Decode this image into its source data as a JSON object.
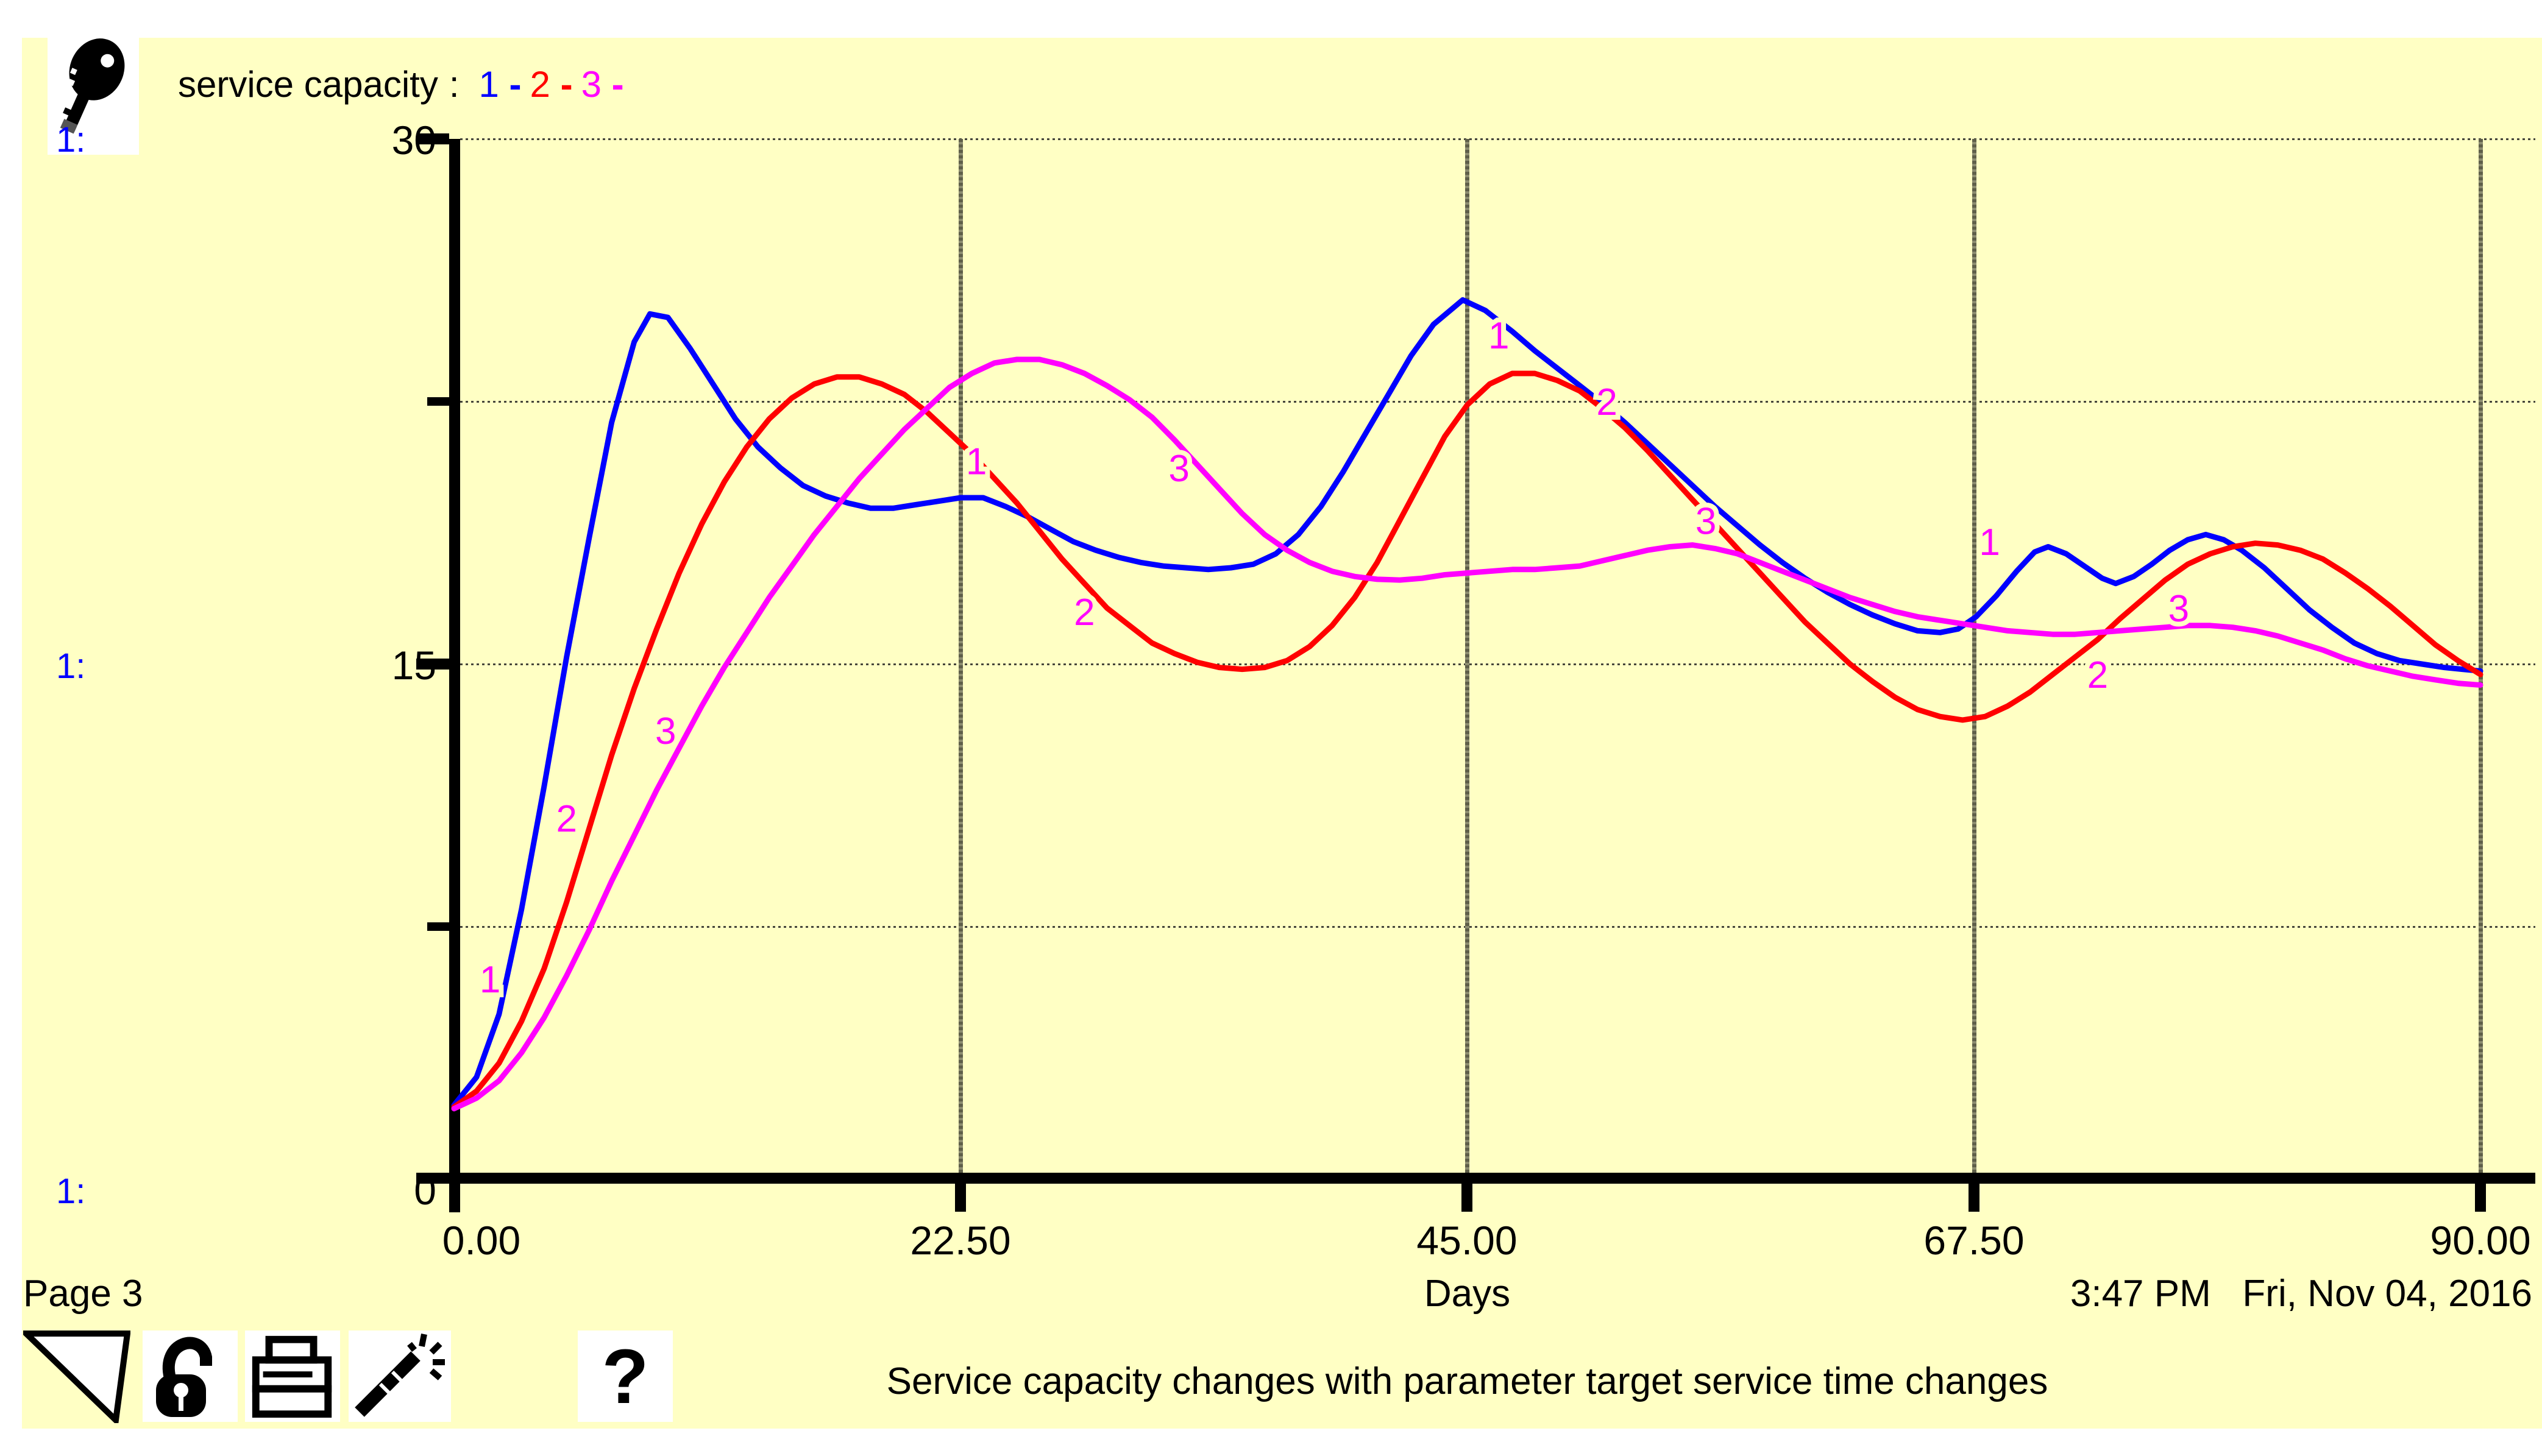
{
  "app": {
    "bg_color": "#FFFFC4",
    "accent_blue": "#0000FF",
    "accent_red": "#FF0000",
    "accent_magenta": "#FF00FF"
  },
  "legend": {
    "title": "service capacity",
    "separator": ":",
    "dash": "-",
    "runs": [
      {
        "label": "1",
        "color": "#0000FF"
      },
      {
        "label": "2",
        "color": "#FF0000"
      },
      {
        "label": "3",
        "color": "#FF00FF"
      }
    ]
  },
  "scale_markers": {
    "label": "1:",
    "color": "#0000FF"
  },
  "y_axis": {
    "ticks": [
      "30",
      "15",
      "0"
    ]
  },
  "x_axis": {
    "ticks": [
      "0.00",
      "22.50",
      "45.00",
      "67.50",
      "90.00"
    ],
    "title": "Days"
  },
  "footer": {
    "page_label": "Page 3",
    "timestamp": "3:47 PM   Fri, Nov 04, 2016",
    "caption": "Service capacity changes with parameter target service time changes"
  },
  "toolbar": {
    "help_glyph": "?",
    "icons": [
      "corner-triangle-icon",
      "open-padlock-icon",
      "printer-icon",
      "magic-wand-icon",
      "help-question-icon"
    ]
  },
  "chart_data": {
    "type": "line",
    "title": "service capacity",
    "xlabel": "Days",
    "ylabel": "service capacity",
    "xlim": [
      0,
      90
    ],
    "ylim": [
      0,
      30
    ],
    "x_ticks": [
      0,
      22.5,
      45,
      67.5,
      90
    ],
    "y_ticks": [
      0,
      15,
      30
    ],
    "x_gridlines": [
      22.5,
      45,
      67.5,
      90
    ],
    "y_gridlines": [
      7.5,
      15,
      22.5,
      30
    ],
    "grid": "dotted horizontal lines, dark vertical lines",
    "legend_position": "top-left",
    "curve_label_color": "#FF00FF",
    "series": [
      {
        "name": "1",
        "color": "#0000FF",
        "points": [
          [
            0,
            2.4
          ],
          [
            1,
            3.2
          ],
          [
            2,
            5
          ],
          [
            3,
            8
          ],
          [
            4,
            11.5
          ],
          [
            5,
            15.2
          ],
          [
            6,
            18.6
          ],
          [
            7,
            21.9
          ],
          [
            8,
            24.2
          ],
          [
            8.7,
            25
          ],
          [
            9.5,
            24.9
          ],
          [
            10.5,
            24
          ],
          [
            11.5,
            23
          ],
          [
            12.5,
            22
          ],
          [
            13.5,
            21.2
          ],
          [
            14.5,
            20.6
          ],
          [
            15.5,
            20.1
          ],
          [
            16.5,
            19.8
          ],
          [
            17.5,
            19.6
          ],
          [
            18.5,
            19.45
          ],
          [
            19.5,
            19.45
          ],
          [
            20.5,
            19.55
          ],
          [
            21.5,
            19.65
          ],
          [
            22.5,
            19.75
          ],
          [
            23.5,
            19.75
          ],
          [
            24.5,
            19.5
          ],
          [
            25.5,
            19.2
          ],
          [
            26.5,
            18.85
          ],
          [
            27.5,
            18.5
          ],
          [
            28.5,
            18.25
          ],
          [
            29.5,
            18.05
          ],
          [
            30.5,
            17.9
          ],
          [
            31.5,
            17.8
          ],
          [
            32.5,
            17.75
          ],
          [
            33.5,
            17.7
          ],
          [
            34.5,
            17.75
          ],
          [
            35.5,
            17.85
          ],
          [
            36.5,
            18.15
          ],
          [
            37.5,
            18.7
          ],
          [
            38.5,
            19.5
          ],
          [
            39.5,
            20.5
          ],
          [
            40.5,
            21.6
          ],
          [
            41.5,
            22.7
          ],
          [
            42.5,
            23.8
          ],
          [
            43.5,
            24.7
          ],
          [
            44.8,
            25.4
          ],
          [
            45.8,
            25.1
          ],
          [
            47,
            24.5
          ],
          [
            48,
            23.95
          ],
          [
            49,
            23.45
          ],
          [
            50,
            22.95
          ],
          [
            51,
            22.45
          ],
          [
            52,
            21.9
          ],
          [
            53,
            21.3
          ],
          [
            54,
            20.7
          ],
          [
            55,
            20.1
          ],
          [
            56,
            19.5
          ],
          [
            57,
            18.95
          ],
          [
            58,
            18.4
          ],
          [
            59,
            17.9
          ],
          [
            60,
            17.45
          ],
          [
            61,
            17.05
          ],
          [
            62,
            16.7
          ],
          [
            63,
            16.4
          ],
          [
            64,
            16.15
          ],
          [
            65,
            15.95
          ],
          [
            66,
            15.9
          ],
          [
            66.8,
            16
          ],
          [
            67.6,
            16.35
          ],
          [
            68.5,
            16.95
          ],
          [
            69.4,
            17.65
          ],
          [
            70.2,
            18.2
          ],
          [
            70.8,
            18.35
          ],
          [
            71.6,
            18.15
          ],
          [
            72.4,
            17.8
          ],
          [
            73.2,
            17.45
          ],
          [
            73.8,
            17.3
          ],
          [
            74.6,
            17.5
          ],
          [
            75.4,
            17.85
          ],
          [
            76.2,
            18.25
          ],
          [
            77,
            18.55
          ],
          [
            77.8,
            18.7
          ],
          [
            78.6,
            18.55
          ],
          [
            79.4,
            18.25
          ],
          [
            80.4,
            17.75
          ],
          [
            81.4,
            17.15
          ],
          [
            82.4,
            16.55
          ],
          [
            83.4,
            16.05
          ],
          [
            84.4,
            15.6
          ],
          [
            85.4,
            15.3
          ],
          [
            86.4,
            15.1
          ],
          [
            87.4,
            15
          ],
          [
            88.4,
            14.9
          ],
          [
            89.2,
            14.85
          ],
          [
            90,
            14.8
          ]
        ]
      },
      {
        "name": "2",
        "color": "#FF0000",
        "points": [
          [
            0,
            2.35
          ],
          [
            1,
            2.8
          ],
          [
            2,
            3.6
          ],
          [
            3,
            4.8
          ],
          [
            4,
            6.3
          ],
          [
            5,
            8.2
          ],
          [
            6,
            10.3
          ],
          [
            7,
            12.4
          ],
          [
            8,
            14.3
          ],
          [
            9,
            16
          ],
          [
            10,
            17.6
          ],
          [
            11,
            19
          ],
          [
            12,
            20.2
          ],
          [
            13,
            21.2
          ],
          [
            14,
            22
          ],
          [
            15,
            22.6
          ],
          [
            16,
            23
          ],
          [
            17,
            23.2
          ],
          [
            18,
            23.2
          ],
          [
            19,
            23
          ],
          [
            20,
            22.7
          ],
          [
            21,
            22.2
          ],
          [
            22,
            21.6
          ],
          [
            23,
            21
          ],
          [
            24,
            20.3
          ],
          [
            25,
            19.6
          ],
          [
            26,
            18.8
          ],
          [
            27,
            18
          ],
          [
            28,
            17.3
          ],
          [
            29,
            16.6
          ],
          [
            30,
            16.1
          ],
          [
            31,
            15.6
          ],
          [
            32,
            15.3
          ],
          [
            33,
            15.05
          ],
          [
            34,
            14.9
          ],
          [
            35,
            14.85
          ],
          [
            36,
            14.9
          ],
          [
            37,
            15.1
          ],
          [
            38,
            15.5
          ],
          [
            39,
            16.1
          ],
          [
            40,
            16.9
          ],
          [
            41,
            17.9
          ],
          [
            42,
            19.1
          ],
          [
            43,
            20.3
          ],
          [
            44,
            21.5
          ],
          [
            45,
            22.4
          ],
          [
            46,
            23
          ],
          [
            47,
            23.3
          ],
          [
            48,
            23.3
          ],
          [
            49,
            23.1
          ],
          [
            50,
            22.8
          ],
          [
            51,
            22.3
          ],
          [
            52,
            21.75
          ],
          [
            53,
            21.1
          ],
          [
            54,
            20.4
          ],
          [
            55,
            19.7
          ],
          [
            56,
            19
          ],
          [
            57,
            18.3
          ],
          [
            58,
            17.6
          ],
          [
            59,
            16.9
          ],
          [
            60,
            16.2
          ],
          [
            61,
            15.6
          ],
          [
            62,
            15
          ],
          [
            63,
            14.5
          ],
          [
            64,
            14.05
          ],
          [
            65,
            13.7
          ],
          [
            66,
            13.5
          ],
          [
            67,
            13.4
          ],
          [
            68,
            13.5
          ],
          [
            69,
            13.8
          ],
          [
            70,
            14.2
          ],
          [
            71,
            14.7
          ],
          [
            72,
            15.2
          ],
          [
            73,
            15.7
          ],
          [
            74,
            16.3
          ],
          [
            75,
            16.85
          ],
          [
            76,
            17.4
          ],
          [
            77,
            17.85
          ],
          [
            78,
            18.15
          ],
          [
            79,
            18.35
          ],
          [
            80,
            18.45
          ],
          [
            81,
            18.4
          ],
          [
            82,
            18.25
          ],
          [
            83,
            18
          ],
          [
            84,
            17.6
          ],
          [
            85,
            17.15
          ],
          [
            86,
            16.65
          ],
          [
            87,
            16.1
          ],
          [
            88,
            15.55
          ],
          [
            89,
            15.1
          ],
          [
            90,
            14.7
          ]
        ]
      },
      {
        "name": "3",
        "color": "#FF00FF",
        "points": [
          [
            0,
            2.3
          ],
          [
            1,
            2.6
          ],
          [
            2,
            3.1
          ],
          [
            3,
            3.9
          ],
          [
            4,
            4.9
          ],
          [
            5,
            6.1
          ],
          [
            6,
            7.4
          ],
          [
            7,
            8.8
          ],
          [
            8,
            10.1
          ],
          [
            9,
            11.4
          ],
          [
            10,
            12.6
          ],
          [
            11,
            13.8
          ],
          [
            12,
            14.9
          ],
          [
            13,
            15.9
          ],
          [
            14,
            16.9
          ],
          [
            15,
            17.8
          ],
          [
            16,
            18.7
          ],
          [
            17,
            19.5
          ],
          [
            18,
            20.3
          ],
          [
            19,
            21
          ],
          [
            20,
            21.7
          ],
          [
            21,
            22.3
          ],
          [
            22,
            22.9
          ],
          [
            23,
            23.3
          ],
          [
            24,
            23.6
          ],
          [
            25,
            23.7
          ],
          [
            26,
            23.7
          ],
          [
            27,
            23.55
          ],
          [
            28,
            23.3
          ],
          [
            29,
            22.95
          ],
          [
            30,
            22.55
          ],
          [
            31,
            22.05
          ],
          [
            32,
            21.4
          ],
          [
            33,
            20.7
          ],
          [
            34,
            20
          ],
          [
            35,
            19.3
          ],
          [
            36,
            18.7
          ],
          [
            37,
            18.25
          ],
          [
            38,
            17.9
          ],
          [
            39,
            17.65
          ],
          [
            40,
            17.5
          ],
          [
            41,
            17.42
          ],
          [
            42,
            17.4
          ],
          [
            43,
            17.45
          ],
          [
            44,
            17.55
          ],
          [
            45,
            17.6
          ],
          [
            46,
            17.65
          ],
          [
            47,
            17.7
          ],
          [
            48,
            17.7
          ],
          [
            49,
            17.75
          ],
          [
            50,
            17.8
          ],
          [
            51,
            17.95
          ],
          [
            52,
            18.1
          ],
          [
            53,
            18.25
          ],
          [
            54,
            18.35
          ],
          [
            55,
            18.4
          ],
          [
            56,
            18.3
          ],
          [
            57,
            18.15
          ],
          [
            58,
            17.9
          ],
          [
            59,
            17.65
          ],
          [
            60,
            17.4
          ],
          [
            61,
            17.15
          ],
          [
            62,
            16.9
          ],
          [
            63,
            16.7
          ],
          [
            64,
            16.5
          ],
          [
            65,
            16.35
          ],
          [
            66,
            16.25
          ],
          [
            67,
            16.15
          ],
          [
            68,
            16.05
          ],
          [
            69,
            15.95
          ],
          [
            70,
            15.9
          ],
          [
            71,
            15.85
          ],
          [
            72,
            15.85
          ],
          [
            73,
            15.9
          ],
          [
            74,
            15.95
          ],
          [
            75,
            16
          ],
          [
            76,
            16.05
          ],
          [
            77,
            16.1
          ],
          [
            78,
            16.1
          ],
          [
            79,
            16.05
          ],
          [
            80,
            15.95
          ],
          [
            81,
            15.8
          ],
          [
            82,
            15.6
          ],
          [
            83,
            15.4
          ],
          [
            84,
            15.15
          ],
          [
            85,
            14.95
          ],
          [
            86,
            14.8
          ],
          [
            87,
            14.65
          ],
          [
            88,
            14.55
          ],
          [
            89,
            14.45
          ],
          [
            90,
            14.4
          ]
        ]
      }
    ],
    "curve_labels": [
      {
        "text": "1",
        "day": 1.6,
        "value": 6.0
      },
      {
        "text": "2",
        "day": 5.0,
        "value": 10.6
      },
      {
        "text": "3",
        "day": 9.4,
        "value": 13.1
      },
      {
        "text": "1",
        "day": 23.2,
        "value": 20.8
      },
      {
        "text": "2",
        "day": 28.0,
        "value": 16.5
      },
      {
        "text": "3",
        "day": 32.2,
        "value": 20.6
      },
      {
        "text": "1",
        "day": 46.4,
        "value": 24.4
      },
      {
        "text": "2",
        "day": 51.2,
        "value": 22.5
      },
      {
        "text": "3",
        "day": 55.6,
        "value": 19.1
      },
      {
        "text": "1",
        "day": 68.2,
        "value": 18.5
      },
      {
        "text": "2",
        "day": 73.0,
        "value": 14.7
      },
      {
        "text": "3",
        "day": 76.6,
        "value": 16.6
      }
    ]
  }
}
